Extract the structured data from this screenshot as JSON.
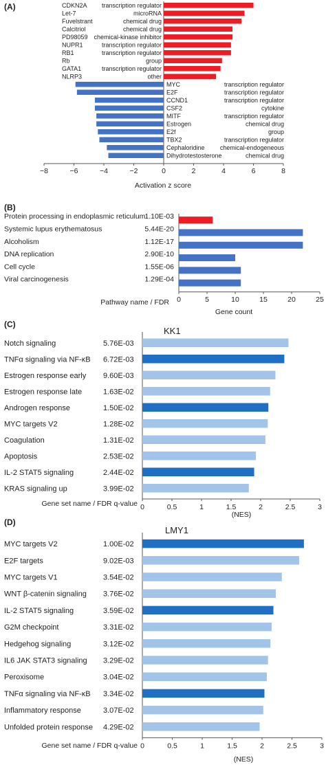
{
  "chart_data": [
    {
      "panel": "(A)",
      "type": "bar",
      "orientation": "horizontal",
      "xlabel": "Activation z score",
      "xlim": [
        -8,
        8
      ],
      "xticks": [
        -8,
        -6,
        -4,
        -2,
        0,
        2,
        4,
        6,
        8
      ],
      "colors": {
        "positive": "#ee1c25",
        "negative": "#4472c4"
      },
      "rows": [
        {
          "name": "CDKN2A",
          "category": "transcription regulator",
          "value": 6.0
        },
        {
          "name": "Let-7",
          "category": "microRNA",
          "value": 5.4
        },
        {
          "name": "Fuvelstrant",
          "category": "chemical drug",
          "value": 5.2
        },
        {
          "name": "Calcitriol",
          "category": "chemical drug",
          "value": 4.6
        },
        {
          "name": "PD98059",
          "category": "chemical-kinase inhibitor",
          "value": 4.6
        },
        {
          "name": "NUPR1",
          "category": "transcription regulator",
          "value": 4.5
        },
        {
          "name": "RB1",
          "category": "transcription regulator",
          "value": 4.5
        },
        {
          "name": "Rb",
          "category": "group",
          "value": 3.9
        },
        {
          "name": "GATA1",
          "category": "transcription regulator",
          "value": 3.8
        },
        {
          "name": "NLRP3",
          "category": "other",
          "value": 3.5
        },
        {
          "name": "MYC",
          "category": "transcription regulator",
          "value": -5.9
        },
        {
          "name": "E2F",
          "category": "transcription regulator",
          "value": -5.8
        },
        {
          "name": "CCND1",
          "category": "transcription regulator",
          "value": -4.6
        },
        {
          "name": "CSF2",
          "category": "cytokine",
          "value": -4.6
        },
        {
          "name": "MITF",
          "category": "transcription regulator",
          "value": -4.5
        },
        {
          "name": "Estrogen",
          "category": "chemical drug",
          "value": -4.5
        },
        {
          "name": "E2f",
          "category": "group",
          "value": -4.4
        },
        {
          "name": "TBX2",
          "category": "transcription regulator",
          "value": -4.3
        },
        {
          "name": "Cephaloridine",
          "category": "chemical-endogeneous",
          "value": -3.8
        },
        {
          "name": "Dihydrotestosterone",
          "category": "chemical drug",
          "value": -3.7
        }
      ]
    },
    {
      "panel": "(B)",
      "type": "bar",
      "orientation": "horizontal",
      "xlabel": "Gene count",
      "ylabel": "Pathway name / FDR",
      "xlim": [
        0,
        25
      ],
      "xticks": [
        0,
        5,
        10,
        15,
        20,
        25
      ],
      "rows": [
        {
          "name": "Protein processing in endoplasmic reticulum",
          "fdr": "1.10E-03",
          "value": 6,
          "color": "#ee1c25"
        },
        {
          "name": "Systemic lupus erythematosus",
          "fdr": "5.44E-20",
          "value": 22,
          "color": "#4472c4"
        },
        {
          "name": "Alcoholism",
          "fdr": "1.12E-17",
          "value": 22,
          "color": "#4472c4"
        },
        {
          "name": "DNA replication",
          "fdr": "2.90E-10",
          "value": 10,
          "color": "#4472c4"
        },
        {
          "name": "Cell cycle",
          "fdr": "1.55E-06",
          "value": 11,
          "color": "#4472c4"
        },
        {
          "name": "Viral carcinogenesis",
          "fdr": "1.29E-04",
          "value": 11,
          "color": "#4472c4"
        }
      ]
    },
    {
      "panel": "(C)",
      "type": "bar",
      "orientation": "horizontal",
      "title": "KK1",
      "xlabel": "(NES)",
      "ylabel": "Gene set name / FDR q-value",
      "xlim": [
        0,
        3
      ],
      "xticks": [
        "0",
        "0.5",
        "1",
        "1.5",
        "2",
        "2.5",
        "3"
      ],
      "colors": {
        "dark": "#1f6fc5",
        "light": "#a1c4e8"
      },
      "rows": [
        {
          "name": "Notch signaling",
          "fdr": "5.76E-03",
          "value": 2.47,
          "dark": false
        },
        {
          "name": "TNFα signaling via NF-κB",
          "fdr": "6.72E-03",
          "value": 2.4,
          "dark": true
        },
        {
          "name": "Estrogen response early",
          "fdr": "9.60E-03",
          "value": 2.25,
          "dark": false
        },
        {
          "name": "Estrogen response late",
          "fdr": "1.63E-02",
          "value": 2.16,
          "dark": false
        },
        {
          "name": "Androgen response",
          "fdr": "1.50E-02",
          "value": 2.13,
          "dark": true
        },
        {
          "name": "MYC targets V2",
          "fdr": "1.28E-02",
          "value": 2.12,
          "dark": false
        },
        {
          "name": "Coagulation",
          "fdr": "1.31E-02",
          "value": 2.08,
          "dark": false
        },
        {
          "name": "Apoptosis",
          "fdr": "2.53E-02",
          "value": 1.92,
          "dark": false
        },
        {
          "name": "IL-2 STAT5 signaling",
          "fdr": "2.44E-02",
          "value": 1.89,
          "dark": true
        },
        {
          "name": "KRAS signaling up",
          "fdr": "3.99E-02",
          "value": 1.8,
          "dark": false
        }
      ]
    },
    {
      "panel": "(D)",
      "type": "bar",
      "orientation": "horizontal",
      "title": "LMY1",
      "xlabel": "(NES)",
      "ylabel": "Gene set name / FDR q-value",
      "xlim": [
        0,
        3
      ],
      "xticks": [
        "0",
        "0.5",
        "1",
        "1.5",
        "2",
        "2.5",
        "3"
      ],
      "colors": {
        "dark": "#1f6fc5",
        "light": "#a1c4e8"
      },
      "rows": [
        {
          "name": "MYC targets V2",
          "fdr": "1.00E-02",
          "value": 2.7,
          "dark": true
        },
        {
          "name": "E2F targets",
          "fdr": "9.02E-03",
          "value": 2.62,
          "dark": false
        },
        {
          "name": "MYC targets V1",
          "fdr": "3.54E-02",
          "value": 2.33,
          "dark": false
        },
        {
          "name": "WNT β-catenin signaling",
          "fdr": "3.76E-02",
          "value": 2.23,
          "dark": false
        },
        {
          "name": "IL-2 STAT5 signaling",
          "fdr": "3.59E-02",
          "value": 2.19,
          "dark": true
        },
        {
          "name": "G2M checkpoint",
          "fdr": "3.31E-02",
          "value": 2.16,
          "dark": false
        },
        {
          "name": "Hedgehog signaling",
          "fdr": "3.12E-02",
          "value": 2.14,
          "dark": false
        },
        {
          "name": "IL6 JAK STAT3 signaling",
          "fdr": "3.29E-02",
          "value": 2.1,
          "dark": false
        },
        {
          "name": "Peroxisome",
          "fdr": "3.04E-02",
          "value": 2.08,
          "dark": false
        },
        {
          "name": "TNFα signaling via NF-κB",
          "fdr": "3.34E-02",
          "value": 2.04,
          "dark": true
        },
        {
          "name": "Inflammatory response",
          "fdr": "3.07E-02",
          "value": 2.02,
          "dark": false
        },
        {
          "name": "Unfolded protein response",
          "fdr": "4.29E-02",
          "value": 1.96,
          "dark": false
        }
      ]
    }
  ]
}
